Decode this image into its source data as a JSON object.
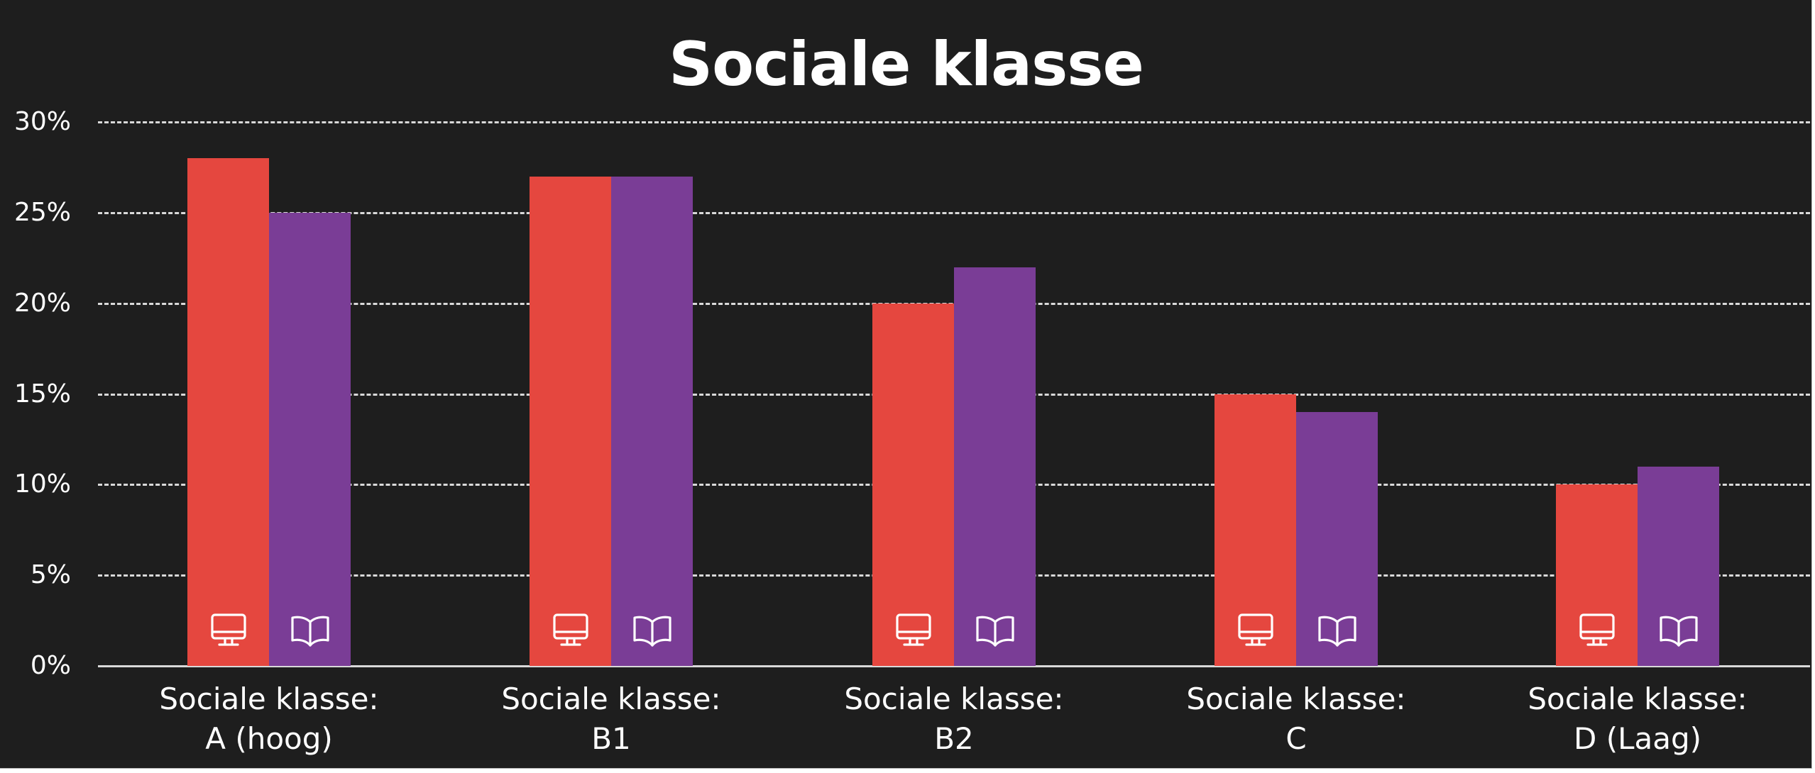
{
  "chart_data": {
    "type": "bar",
    "title": "Sociale klasse",
    "xlabel": "",
    "ylabel": "",
    "categories": [
      "Sociale klasse: A (hoog)",
      "Sociale klasse: B1",
      "Sociale klasse: B2",
      "Sociale klasse: C",
      "Sociale klasse: D (Laag)"
    ],
    "series": [
      {
        "name": "Online (monitor icon)",
        "icon": "monitor-icon",
        "color": "#E5473F",
        "values": [
          28,
          27,
          20,
          15,
          10
        ]
      },
      {
        "name": "Print (book icon)",
        "icon": "book-icon",
        "color": "#7A3D96",
        "values": [
          25,
          27,
          22,
          14,
          11
        ]
      }
    ],
    "ylim": [
      0,
      30
    ],
    "yticks": [
      "0%",
      "5%",
      "10%",
      "15%",
      "20%",
      "25%",
      "30%"
    ],
    "grid": true,
    "grid_style": "dashed",
    "legend": "none (series identified by icons inside bars)",
    "background": "#1E1E1E",
    "value_format": "percent"
  },
  "title": "Sociale klasse",
  "y_axis": {
    "ticks": [
      {
        "label": "30%",
        "value": 30
      },
      {
        "label": "25%",
        "value": 25
      },
      {
        "label": "20%",
        "value": 20
      },
      {
        "label": "15%",
        "value": 15
      },
      {
        "label": "10%",
        "value": 10
      },
      {
        "label": "5%",
        "value": 5
      },
      {
        "label": "0%",
        "value": 0
      }
    ]
  },
  "groups": [
    {
      "line1": "Sociale klasse:",
      "line2": "A (hoog)"
    },
    {
      "line1": "Sociale klasse:",
      "line2": "B1"
    },
    {
      "line1": "Sociale klasse:",
      "line2": "B2"
    },
    {
      "line1": "Sociale klasse:",
      "line2": "C"
    },
    {
      "line1": "Sociale klasse:",
      "line2": "D (Laag)"
    }
  ],
  "colors": {
    "series_red": "#E5473F",
    "series_purple": "#7A3D96",
    "background": "#1E1E1E",
    "grid": "#D9D9D9",
    "text": "#FFFFFF"
  }
}
